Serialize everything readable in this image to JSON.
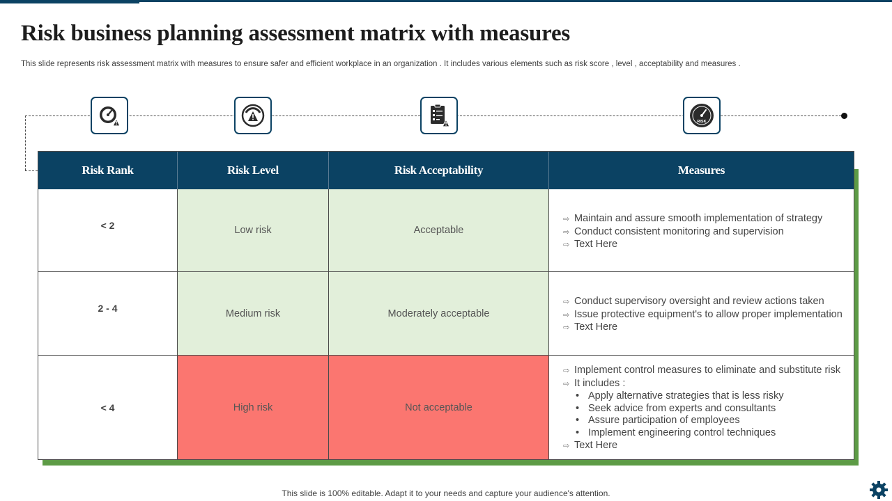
{
  "slide": {
    "title": "Risk business planning assessment matrix with measures",
    "subtitle": "This slide represents risk assessment matrix with measures to ensure safer and efficient workplace in an organization . It includes various elements such as risk score , level , acceptability and measures .",
    "footer": "This slide is 100% editable. Adapt it to your needs and capture your audience's attention."
  },
  "colors": {
    "header_bg": "#0b4263",
    "green_cell": "#e2efda",
    "red_cell": "#fb7670",
    "shadow_accent": "#5d9b46"
  },
  "icons": [
    {
      "name": "speedometer-warning-icon"
    },
    {
      "name": "gauge-warning-icon"
    },
    {
      "name": "checklist-warning-icon"
    },
    {
      "name": "risk-gauge-icon",
      "label": "RISK"
    }
  ],
  "table": {
    "headers": {
      "rank": "Risk Rank",
      "level": "Risk Level",
      "acceptability": "Risk Acceptability",
      "measures": "Measures"
    },
    "rows": [
      {
        "rank": "< 2",
        "level": "Low risk",
        "acceptability": "Acceptable",
        "measures": {
          "m0": "Maintain and assure smooth implementation of strategy",
          "m1": "Conduct consistent monitoring and supervision",
          "m2": "Text Here"
        }
      },
      {
        "rank": "2 - 4",
        "level": "Medium risk",
        "acceptability": "Moderately acceptable",
        "measures": {
          "m0": "Conduct supervisory oversight and review actions taken",
          "m1": "Issue protective equipment's to allow proper implementation",
          "m2": "Text Here"
        }
      },
      {
        "rank": "< 4",
        "level": "High risk",
        "acceptability": "Not acceptable",
        "measures": {
          "m0": "Implement control measures to eliminate and substitute risk",
          "m1": "It includes :",
          "s0": "Apply alternative strategies that is less risky",
          "s1": "Seek advice from experts and consultants",
          "s2": "Assure participation of employees",
          "s3": "Implement engineering control techniques",
          "m2": "Text Here"
        }
      }
    ]
  }
}
